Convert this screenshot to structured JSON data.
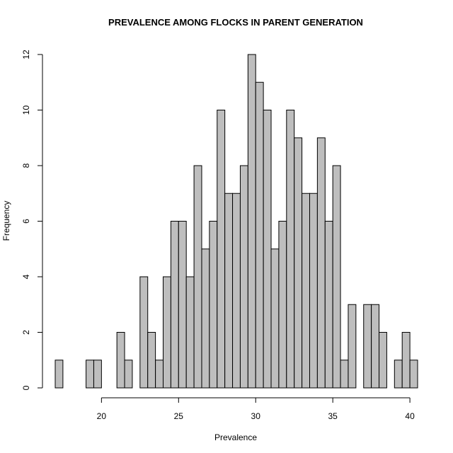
{
  "chart_data": {
    "type": "bar",
    "title": "PREVALENCE AMONG FLOCKS IN PARENT GENERATION",
    "xlabel": "Prevalence",
    "ylabel": "Frequency",
    "bin_width": 0.5,
    "xlim": [
      17.0,
      40.5
    ],
    "ylim": [
      0,
      12
    ],
    "x_ticks": [
      20,
      25,
      30,
      35,
      40
    ],
    "y_ticks": [
      0,
      2,
      4,
      6,
      8,
      10,
      12
    ],
    "bin_starts": [
      17.0,
      17.5,
      18.0,
      18.5,
      19.0,
      19.5,
      20.0,
      20.5,
      21.0,
      21.5,
      22.0,
      22.5,
      23.0,
      23.5,
      24.0,
      24.5,
      25.0,
      25.5,
      26.0,
      26.5,
      27.0,
      27.5,
      28.0,
      28.5,
      29.0,
      29.5,
      30.0,
      30.5,
      31.0,
      31.5,
      32.0,
      32.5,
      33.0,
      33.5,
      34.0,
      34.5,
      35.0,
      35.5,
      36.0,
      36.5,
      37.0,
      37.5,
      38.0,
      38.5,
      39.0,
      39.5,
      40.0
    ],
    "values": [
      1,
      0,
      0,
      0,
      1,
      1,
      0,
      0,
      2,
      1,
      0,
      4,
      2,
      1,
      4,
      6,
      6,
      4,
      8,
      5,
      6,
      10,
      7,
      7,
      8,
      12,
      11,
      10,
      5,
      6,
      10,
      9,
      7,
      7,
      9,
      6,
      8,
      1,
      3,
      0,
      3,
      3,
      2,
      0,
      1,
      2,
      1
    ],
    "fill_color": "#bebebe",
    "edge_color": "#000000"
  }
}
